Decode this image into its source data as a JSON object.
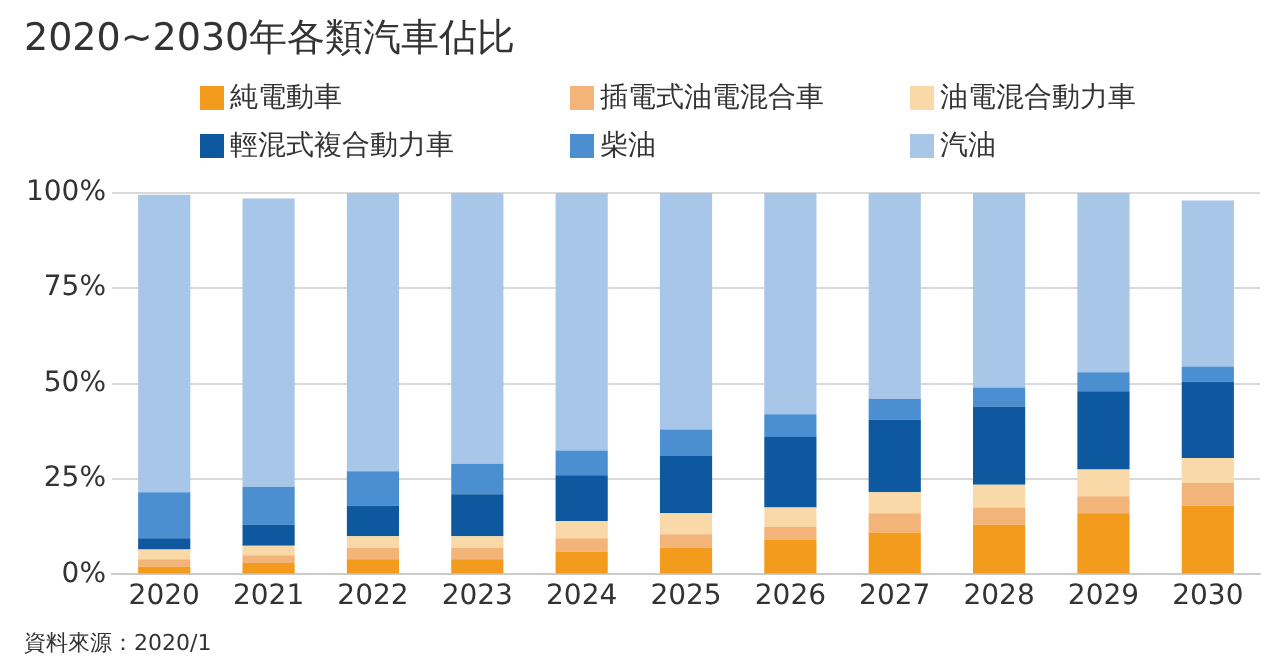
{
  "chart_data": {
    "type": "bar",
    "title": "2020~2030年各類汽車佔比",
    "stacked": true,
    "legend": "top",
    "grid": "y",
    "categories": [
      "2020",
      "2021",
      "2022",
      "2023",
      "2024",
      "2025",
      "2026",
      "2027",
      "2028",
      "2029",
      "2030"
    ],
    "ylim": [
      0,
      100
    ],
    "yticks": [
      {
        "value": 0,
        "label": "0%"
      },
      {
        "value": 25,
        "label": "25%"
      },
      {
        "value": 50,
        "label": "50%"
      },
      {
        "value": 75,
        "label": "75%"
      },
      {
        "value": 100,
        "label": "100%"
      }
    ],
    "series": [
      {
        "name": "純電動車",
        "color": "#f29b1d",
        "values": [
          2,
          3,
          4,
          4,
          6,
          7,
          9,
          11,
          13,
          16,
          18
        ]
      },
      {
        "name": "插電式油電混合車",
        "color": "#f3b47a",
        "values": [
          2,
          2,
          3,
          3,
          3.5,
          3.5,
          3.5,
          5,
          4.5,
          4.5,
          6
        ]
      },
      {
        "name": "油電混合動力車",
        "color": "#f9d9a8",
        "values": [
          2.5,
          2.5,
          3,
          3,
          4.5,
          5.5,
          5,
          5.5,
          6,
          7,
          6.5
        ]
      },
      {
        "name": "輕混式複合動力車",
        "color": "#0d589f",
        "values": [
          3,
          5.5,
          8,
          11,
          12,
          15,
          18.5,
          19,
          20.5,
          20.5,
          20
        ]
      },
      {
        "name": "柴油",
        "color": "#4b8fd1",
        "values": [
          12,
          10,
          9,
          8,
          6.5,
          7,
          6,
          5.5,
          5,
          5,
          4
        ]
      },
      {
        "name": "汽油",
        "color": "#a8c6e8",
        "values": [
          78,
          75.5,
          73,
          71,
          67.5,
          62,
          58,
          54,
          51,
          47,
          43.5
        ]
      }
    ],
    "annotations": [
      "資料來源：2020/1"
    ]
  }
}
